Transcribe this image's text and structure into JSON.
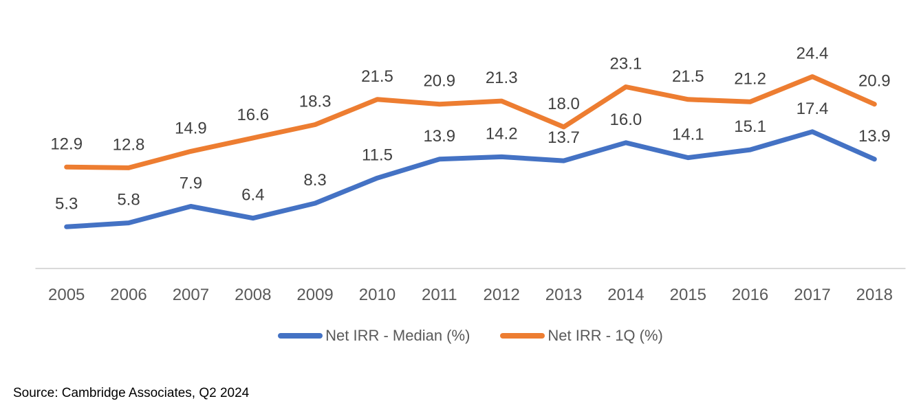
{
  "colors": {
    "median_line": "#4472C4",
    "first_quartile_line": "#ED7D31",
    "axis_line": "#D9D9D9",
    "data_label_text": "#404040",
    "axis_label_text": "#595959",
    "legend_text": "#595959",
    "source_text": "#000000",
    "background": "#FFFFFF"
  },
  "chart_data": {
    "type": "line",
    "title": "",
    "xlabel": "",
    "ylabel": "",
    "categories": [
      "2005",
      "2006",
      "2007",
      "2008",
      "2009",
      "2010",
      "2011",
      "2012",
      "2013",
      "2014",
      "2015",
      "2016",
      "2017",
      "2018"
    ],
    "series": [
      {
        "name": "Net IRR - Median (%)",
        "color": "#4472C4",
        "values": [
          5.3,
          5.8,
          7.9,
          6.4,
          8.3,
          11.5,
          13.9,
          14.2,
          13.7,
          16.0,
          14.1,
          15.1,
          17.4,
          13.9
        ]
      },
      {
        "name": "Net IRR - 1Q (%)",
        "color": "#ED7D31",
        "values": [
          12.9,
          12.8,
          14.9,
          16.6,
          18.3,
          21.5,
          20.9,
          21.3,
          18.0,
          23.1,
          21.5,
          21.2,
          24.4,
          20.9
        ]
      }
    ],
    "ylim": [
      0,
      30
    ],
    "grid": false,
    "legend_position": "bottom",
    "data_labels": "above",
    "data_label_decimals": 1
  },
  "source_note": "Source: Cambridge Associates, Q2 2024"
}
